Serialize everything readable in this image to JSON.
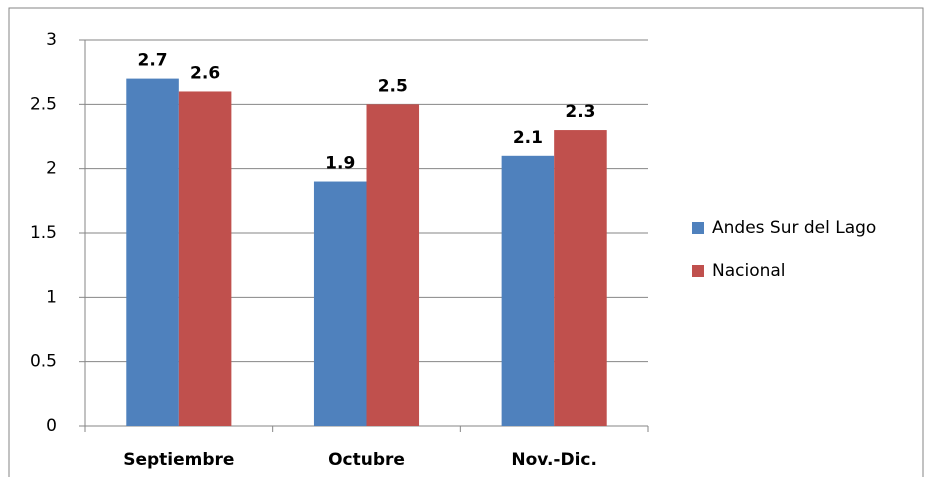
{
  "chart_data": {
    "type": "bar",
    "categories": [
      "Septiembre",
      "Octubre",
      "Nov.-Dic."
    ],
    "series": [
      {
        "name": "Andes Sur del Lago",
        "color": "#4f81bd",
        "values": [
          2.7,
          1.9,
          2.1
        ]
      },
      {
        "name": "Nacional",
        "color": "#c0504d",
        "values": [
          2.6,
          2.5,
          2.3
        ]
      }
    ],
    "ylim": [
      0,
      3
    ],
    "yticks": [
      0,
      0.5,
      1,
      1.5,
      2,
      2.5,
      3
    ],
    "grid": true,
    "legend": "right"
  }
}
